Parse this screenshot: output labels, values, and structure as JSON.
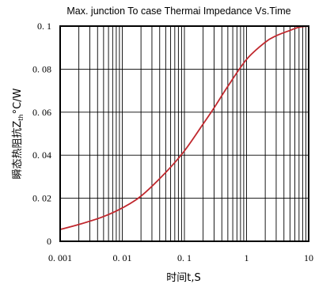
{
  "chart_data": {
    "type": "line",
    "title": "Max. junction To case Thermai Impedance Vs.Time",
    "xlabel": "时间t,S",
    "ylabel": {
      "main": "瞬态热阻抗Z",
      "sub": "th",
      "unit": "°C/W"
    },
    "x_scale": "log",
    "xlim": [
      0.001,
      10
    ],
    "ylim": [
      0,
      0.1
    ],
    "x_ticks": [
      0.001,
      0.01,
      0.1,
      1,
      10
    ],
    "x_tick_labels": [
      "0. 001",
      "0. 01",
      "0. 1",
      "1",
      "10"
    ],
    "y_ticks": [
      0,
      0.02,
      0.04,
      0.06,
      0.08,
      0.1
    ],
    "y_tick_labels": [
      "0",
      "0. 02",
      "0. 04",
      "0. 06",
      "0. 08",
      "0. 1"
    ],
    "grid": true,
    "series": [
      {
        "color": "#c0282e",
        "x": [
          0.001,
          0.002,
          0.005,
          0.01,
          0.02,
          0.05,
          0.1,
          0.2,
          0.3,
          0.5,
          1,
          2,
          3,
          5,
          7,
          10
        ],
        "y": [
          0.0055,
          0.0078,
          0.0115,
          0.0155,
          0.021,
          0.032,
          0.042,
          0.0545,
          0.062,
          0.072,
          0.0845,
          0.0925,
          0.0955,
          0.098,
          0.0995,
          0.1
        ]
      }
    ]
  }
}
